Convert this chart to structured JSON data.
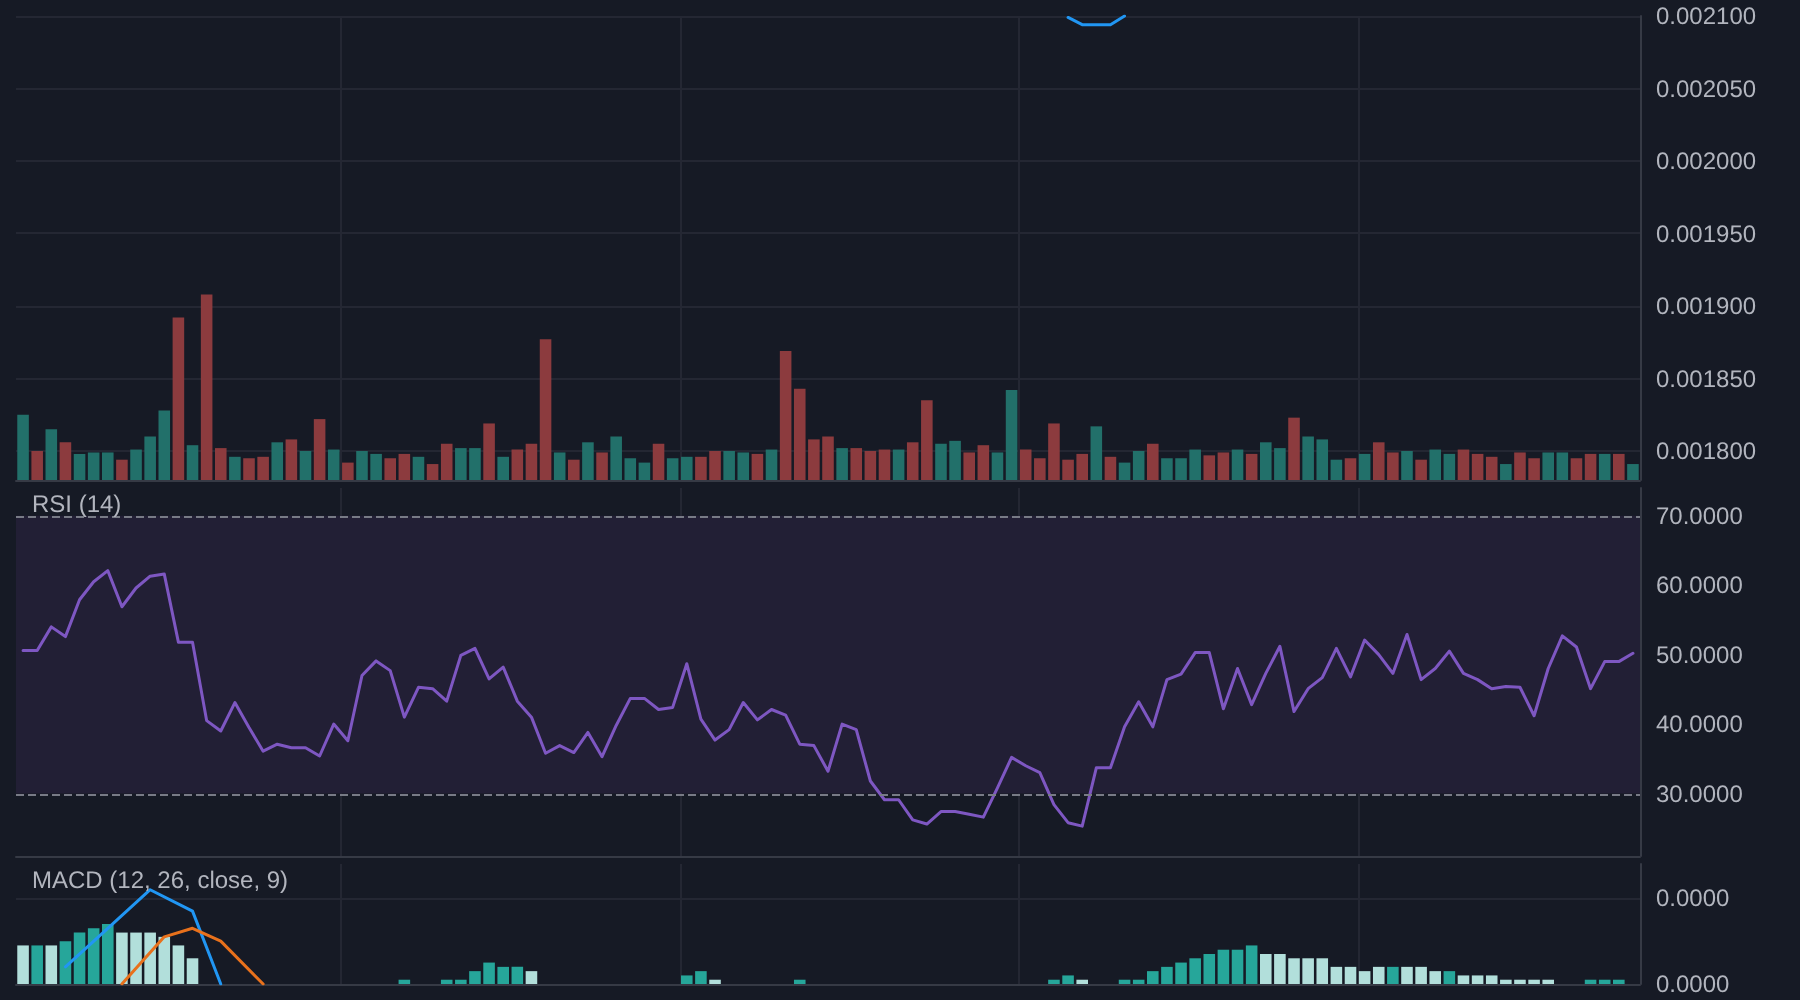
{
  "chart_data": [
    {
      "type": "bar",
      "categories": [
        null,
        null,
        null,
        null,
        null,
        null,
        null,
        null,
        null,
        null,
        null,
        null,
        null,
        null,
        null,
        null,
        null,
        null,
        null,
        null,
        null,
        null,
        null,
        null,
        null,
        null,
        null,
        null,
        null,
        null,
        null,
        null,
        null,
        null,
        null,
        null,
        null,
        null,
        null,
        null,
        null,
        null,
        null,
        null,
        null,
        null,
        null,
        null,
        null,
        null,
        null,
        null,
        null,
        null,
        null,
        null,
        null,
        null,
        null,
        null,
        null,
        null,
        null,
        null,
        null,
        null,
        null,
        null,
        null,
        null,
        null,
        null,
        null,
        null,
        null,
        null,
        null,
        null,
        null,
        null,
        null,
        null,
        null,
        null,
        null,
        null,
        null,
        null,
        null,
        null,
        null,
        null,
        null,
        null,
        null,
        null,
        null,
        null,
        null,
        null,
        null,
        null,
        null,
        null,
        null,
        null,
        null,
        null,
        null,
        null,
        null,
        null,
        null,
        null,
        null
      ],
      "series": [
        {
          "values": [
            0.001825,
            0.0018,
            0.001815,
            0.001806,
            0.001798,
            0.001799,
            0.001799,
            0.001794,
            0.001801,
            0.00181,
            0.001828,
            0.001892,
            0.001804,
            0.001908,
            0.001802,
            0.001796,
            0.001795,
            0.001796,
            0.001806,
            0.001808,
            0.0018,
            0.001822,
            0.001801,
            0.001792,
            0.0018,
            0.001798,
            0.001795,
            0.001798,
            0.001796,
            0.001791,
            0.001805,
            0.001802,
            0.001802,
            0.001819,
            0.001796,
            0.001801,
            0.001805,
            0.001877,
            0.001799,
            0.001794,
            0.001806,
            0.001799,
            0.00181,
            0.001795,
            0.001792,
            0.001805,
            0.001795,
            0.001796,
            0.001796,
            0.0018,
            0.0018,
            0.001799,
            0.001798,
            0.001801,
            0.001869,
            0.001843,
            0.001808,
            0.00181,
            0.001802,
            0.001802,
            0.0018,
            0.001801,
            0.001801,
            0.001806,
            0.001835,
            0.001805,
            0.001807,
            0.001799,
            0.001804,
            0.001799,
            0.001842,
            0.001801,
            0.001795,
            0.001819,
            0.001794,
            0.001798,
            0.001817,
            0.001796,
            0.001792,
            0.0018,
            0.001805,
            0.001795,
            0.001795,
            0.001801,
            0.001797,
            0.001799,
            0.001801,
            0.001798,
            0.001806,
            0.001802,
            0.001823,
            0.00181,
            0.001808,
            0.001794,
            0.001795,
            0.001798,
            0.001806,
            0.001799,
            0.0018,
            0.001794,
            0.001801,
            0.001798,
            0.001801,
            0.001798,
            0.001796,
            0.001791,
            0.001799,
            0.001795,
            0.001799,
            0.001799,
            0.001795,
            0.001798,
            0.001798,
            0.001798,
            0.001791
          ],
          "colors": [
            "#22706a",
            "#8c3b3e",
            "#22706a",
            "#8c3b3e",
            "#22706a",
            "#22706a",
            "#22706a",
            "#8c3b3e",
            "#22706a",
            "#22706a",
            "#22706a",
            "#8c3b3e",
            "#22706a",
            "#8c3b3e",
            "#8c3b3e",
            "#22706a",
            "#8c3b3e",
            "#8c3b3e",
            "#22706a",
            "#8c3b3e",
            "#22706a",
            "#8c3b3e",
            "#22706a",
            "#8c3b3e",
            "#22706a",
            "#22706a",
            "#8c3b3e",
            "#8c3b3e",
            "#22706a",
            "#8c3b3e",
            "#8c3b3e",
            "#22706a",
            "#22706a",
            "#8c3b3e",
            "#22706a",
            "#8c3b3e",
            "#8c3b3e",
            "#8c3b3e",
            "#22706a",
            "#8c3b3e",
            "#22706a",
            "#8c3b3e",
            "#22706a",
            "#22706a",
            "#22706a",
            "#8c3b3e",
            "#22706a",
            "#22706a",
            "#8c3b3e",
            "#8c3b3e",
            "#22706a",
            "#22706a",
            "#8c3b3e",
            "#22706a",
            "#8c3b3e",
            "#8c3b3e",
            "#8c3b3e",
            "#8c3b3e",
            "#22706a",
            "#8c3b3e",
            "#8c3b3e",
            "#8c3b3e",
            "#22706a",
            "#8c3b3e",
            "#8c3b3e",
            "#22706a",
            "#22706a",
            "#8c3b3e",
            "#8c3b3e",
            "#22706a",
            "#22706a",
            "#8c3b3e",
            "#8c3b3e",
            "#8c3b3e",
            "#8c3b3e",
            "#8c3b3e",
            "#22706a",
            "#8c3b3e",
            "#22706a",
            "#22706a",
            "#8c3b3e",
            "#22706a",
            "#22706a",
            "#22706a",
            "#8c3b3e",
            "#8c3b3e",
            "#22706a",
            "#8c3b3e",
            "#22706a",
            "#22706a",
            "#8c3b3e",
            "#22706a",
            "#22706a",
            "#22706a",
            "#8c3b3e",
            "#22706a",
            "#8c3b3e",
            "#8c3b3e",
            "#22706a",
            "#8c3b3e",
            "#22706a",
            "#22706a",
            "#8c3b3e",
            "#8c3b3e",
            "#8c3b3e",
            "#22706a",
            "#8c3b3e",
            "#8c3b3e",
            "#22706a",
            "#22706a",
            "#8c3b3e",
            "#8c3b3e",
            "#22706a",
            "#8c3b3e",
            "#22706a"
          ]
        },
        {
          "type": "line",
          "color": "#2196f3",
          "values": [
            null,
            null,
            null,
            null,
            null,
            null,
            null,
            null,
            null,
            null,
            null,
            null,
            null,
            null,
            null,
            null,
            null,
            null,
            null,
            null,
            null,
            null,
            null,
            null,
            null,
            null,
            null,
            null,
            null,
            null,
            null,
            null,
            null,
            null,
            null,
            null,
            null,
            null,
            null,
            null,
            null,
            null,
            null,
            null,
            null,
            null,
            null,
            null,
            null,
            null,
            null,
            null,
            null,
            null,
            null,
            null,
            null,
            null,
            null,
            null,
            null,
            null,
            null,
            null,
            null,
            null,
            null,
            null,
            null,
            null,
            null,
            null,
            null,
            null,
            0.002099,
            0.002094,
            0.002094,
            0.002094,
            0.0021,
            null,
            null,
            null,
            null,
            null,
            null,
            null,
            null,
            null,
            null,
            null,
            null,
            null,
            null,
            null,
            null,
            null,
            null,
            null,
            null,
            null,
            null,
            null,
            null,
            null,
            null,
            null,
            null,
            null,
            null,
            null,
            null,
            null,
            null,
            null,
            null
          ]
        }
      ],
      "ylim": [
        0.00178,
        0.0021
      ],
      "yticks": [
        {
          "value": 0.0018,
          "label": "0.001800"
        },
        {
          "value": 0.00185,
          "label": "0.001850"
        },
        {
          "value": 0.0019,
          "label": "0.001900"
        },
        {
          "value": 0.00195,
          "label": "0.001950"
        },
        {
          "value": 0.002,
          "label": "0.002000"
        },
        {
          "value": 0.00205,
          "label": "0.002050"
        },
        {
          "value": 0.0021,
          "label": "0.002100"
        }
      ],
      "grid": true,
      "tick_labels": "y"
    },
    {
      "type": "line",
      "title": "RSI (14)",
      "categories": [
        null,
        null,
        null,
        null,
        null,
        null,
        null,
        null,
        null,
        null,
        null,
        null,
        null,
        null,
        null,
        null,
        null,
        null,
        null,
        null,
        null,
        null,
        null,
        null,
        null,
        null,
        null,
        null,
        null,
        null,
        null,
        null,
        null,
        null,
        null,
        null,
        null,
        null,
        null,
        null,
        null,
        null,
        null,
        null,
        null,
        null,
        null,
        null,
        null,
        null,
        null,
        null,
        null,
        null,
        null,
        null,
        null,
        null,
        null,
        null,
        null,
        null,
        null,
        null,
        null,
        null,
        null,
        null,
        null,
        null,
        null,
        null,
        null,
        null,
        null,
        null,
        null,
        null,
        null,
        null,
        null,
        null,
        null,
        null,
        null,
        null,
        null,
        null,
        null,
        null,
        null,
        null,
        null,
        null,
        null,
        null,
        null,
        null,
        null,
        null,
        null,
        null,
        null,
        null,
        null,
        null,
        null,
        null,
        null,
        null,
        null,
        null,
        null,
        null,
        null
      ],
      "series": [
        {
          "color": "#7e57c2",
          "values": [
            50.6,
            50.6,
            54.0,
            52.6,
            57.9,
            60.5,
            62.1,
            56.9,
            59.6,
            61.3,
            61.6,
            51.8,
            51.8,
            40.5,
            39.0,
            43.1,
            39.5,
            36.1,
            37.1,
            36.6,
            36.6,
            35.4,
            40.0,
            37.6,
            47.0,
            49.1,
            47.7,
            41.0,
            45.3,
            45.1,
            43.3,
            49.9,
            50.9,
            46.5,
            48.2,
            43.3,
            41.0,
            35.8,
            36.9,
            35.9,
            38.8,
            35.3,
            39.8,
            43.7,
            43.7,
            42.1,
            42.4,
            48.7,
            40.7,
            37.7,
            39.2,
            43.1,
            40.6,
            42.1,
            41.3,
            37.1,
            36.9,
            33.2,
            40.0,
            39.2,
            31.8,
            29.1,
            29.1,
            26.2,
            25.6,
            27.4,
            27.4,
            27.0,
            26.6,
            30.8,
            35.2,
            34.0,
            33.0,
            28.4,
            25.8,
            25.3,
            33.7,
            33.7,
            39.6,
            43.2,
            39.6,
            46.4,
            47.2,
            50.3,
            50.3,
            42.2,
            48.0,
            42.8,
            47.3,
            51.2,
            41.8,
            45.1,
            46.7,
            50.9,
            46.8,
            52.1,
            50.0,
            47.3,
            52.9,
            46.4,
            48.0,
            50.5,
            47.3,
            46.4,
            45.1,
            45.4,
            45.3,
            41.2,
            48.0,
            52.7,
            51.1,
            45.1,
            49.0,
            49.0,
            50.2
          ]
        }
      ],
      "ylim": [
        21,
        74
      ],
      "yticks": [
        {
          "value": 30,
          "label": "30.0000"
        },
        {
          "value": 40,
          "label": "40.0000"
        },
        {
          "value": 50,
          "label": "50.0000"
        },
        {
          "value": 60,
          "label": "60.0000"
        },
        {
          "value": 70,
          "label": "70.0000"
        }
      ],
      "bands": [
        {
          "axis": "y",
          "from": 30,
          "to": 70,
          "color": "#221f35"
        }
      ],
      "ref_lines": [
        {
          "axis": "y",
          "value": 70,
          "color": "#787b86",
          "line_style": "dashed"
        },
        {
          "axis": "y",
          "value": 30,
          "color": "#787b86",
          "line_style": "dashed"
        }
      ],
      "grid": true,
      "tick_labels": "y",
      "line_style": "solid"
    },
    {
      "type": "bar",
      "title": "MACD (12, 26, close, 9)",
      "categories": [
        null,
        null,
        null,
        null,
        null,
        null,
        null,
        null,
        null,
        null,
        null,
        null,
        null,
        null,
        null,
        null,
        null,
        null,
        null,
        null,
        null,
        null,
        null,
        null,
        null,
        null,
        null,
        null,
        null,
        null,
        null,
        null,
        null,
        null,
        null,
        null,
        null,
        null,
        null,
        null,
        null,
        null,
        null,
        null,
        null,
        null,
        null,
        null,
        null,
        null,
        null,
        null,
        null,
        null,
        null,
        null,
        null,
        null,
        null,
        null,
        null,
        null,
        null,
        null,
        null,
        null,
        null,
        null,
        null,
        null,
        null,
        null,
        null,
        null,
        null,
        null,
        null,
        null,
        null,
        null,
        null,
        null,
        null,
        null,
        null,
        null,
        null,
        null,
        null,
        null,
        null,
        null,
        null,
        null,
        null,
        null,
        null,
        null,
        null,
        null,
        null,
        null,
        null,
        null,
        null,
        null,
        null,
        null,
        null,
        null,
        null,
        null,
        null,
        null,
        null
      ],
      "series": [
        {
          "values": [
            9e-06,
            9e-06,
            9e-06,
            1e-05,
            1.2e-05,
            1.3e-05,
            1.4e-05,
            1.2e-05,
            1.2e-05,
            1.2e-05,
            1.1e-05,
            9e-06,
            6e-06,
            null,
            null,
            null,
            null,
            null,
            null,
            null,
            null,
            null,
            null,
            null,
            null,
            null,
            null,
            1e-06,
            null,
            null,
            1e-06,
            1e-06,
            3e-06,
            5e-06,
            4e-06,
            4e-06,
            3e-06,
            null,
            null,
            null,
            null,
            null,
            null,
            null,
            null,
            null,
            null,
            2e-06,
            3e-06,
            1e-06,
            null,
            null,
            null,
            null,
            null,
            1e-06,
            null,
            null,
            null,
            null,
            null,
            null,
            null,
            null,
            null,
            null,
            null,
            null,
            null,
            null,
            null,
            null,
            null,
            1e-06,
            2e-06,
            1e-06,
            null,
            null,
            1e-06,
            1e-06,
            3e-06,
            4e-06,
            5e-06,
            6e-06,
            7e-06,
            8e-06,
            8e-06,
            9e-06,
            7e-06,
            7e-06,
            6e-06,
            6e-06,
            6e-06,
            4e-06,
            4e-06,
            3e-06,
            4e-06,
            4e-06,
            4e-06,
            4e-06,
            3e-06,
            3e-06,
            2e-06,
            2e-06,
            2e-06,
            1e-06,
            1e-06,
            1e-06,
            1e-06,
            null,
            null,
            1e-06,
            1e-06,
            1e-06,
            null
          ],
          "colors": [
            "#b2dfdb",
            "#26a69a",
            "#b2dfdb",
            "#26a69a",
            "#26a69a",
            "#26a69a",
            "#26a69a",
            "#b2dfdb",
            "#b2dfdb",
            "#b2dfdb",
            "#b2dfdb",
            "#b2dfdb",
            "#b2dfdb",
            null,
            null,
            null,
            null,
            null,
            null,
            null,
            null,
            null,
            null,
            null,
            null,
            null,
            null,
            "#26a69a",
            null,
            null,
            "#26a69a",
            "#26a69a",
            "#26a69a",
            "#26a69a",
            "#26a69a",
            "#26a69a",
            "#b2dfdb",
            null,
            null,
            null,
            null,
            null,
            null,
            null,
            null,
            null,
            null,
            "#26a69a",
            "#26a69a",
            "#b2dfdb",
            null,
            null,
            null,
            null,
            null,
            "#26a69a",
            null,
            null,
            null,
            null,
            null,
            null,
            null,
            null,
            null,
            null,
            null,
            null,
            null,
            null,
            null,
            null,
            null,
            "#26a69a",
            "#26a69a",
            "#b2dfdb",
            null,
            null,
            "#26a69a",
            "#26a69a",
            "#26a69a",
            "#26a69a",
            "#26a69a",
            "#26a69a",
            "#26a69a",
            "#26a69a",
            "#26a69a",
            "#26a69a",
            "#b2dfdb",
            "#b2dfdb",
            "#b2dfdb",
            "#b2dfdb",
            "#b2dfdb",
            "#b2dfdb",
            "#b2dfdb",
            "#b2dfdb",
            "#b2dfdb",
            "#26a69a",
            "#b2dfdb",
            "#b2dfdb",
            "#b2dfdb",
            "#26a69a",
            "#b2dfdb",
            "#b2dfdb",
            "#b2dfdb",
            "#b2dfdb",
            "#b2dfdb",
            "#b2dfdb",
            "#b2dfdb",
            null,
            null,
            "#26a69a",
            "#26a69a",
            "#26a69a",
            null
          ]
        },
        {
          "type": "line",
          "color": "#2196f3",
          "values": [
            null,
            null,
            null,
            4e-06,
            null,
            null,
            1.3e-05,
            null,
            null,
            2.2e-05,
            null,
            null,
            1.7e-05,
            null,
            0,
            null,
            null,
            null,
            null,
            null,
            null,
            null,
            null,
            null,
            null,
            null,
            null,
            null,
            null,
            null,
            null,
            null,
            null,
            null,
            null,
            null,
            null,
            null,
            null,
            null,
            null,
            null,
            null,
            null,
            null,
            null,
            null,
            null,
            null,
            null,
            null,
            null,
            null,
            null,
            null,
            null,
            null,
            null,
            null,
            null,
            null,
            null,
            null,
            null,
            null,
            null,
            null,
            null,
            null,
            null,
            null,
            null,
            null,
            null,
            null,
            null,
            null,
            null,
            null,
            null,
            null,
            null,
            null,
            null,
            null,
            null,
            null,
            null,
            null,
            null,
            null,
            null,
            null,
            null,
            null,
            null,
            null,
            null,
            null,
            null,
            null,
            null,
            null,
            null,
            null,
            null,
            null,
            null,
            null,
            null,
            null,
            null,
            null,
            null,
            null
          ]
        },
        {
          "type": "line",
          "color": "#e8711c",
          "values": [
            null,
            null,
            null,
            null,
            null,
            null,
            null,
            0,
            null,
            null,
            1.1e-05,
            null,
            1.3e-05,
            null,
            1e-05,
            null,
            null,
            0,
            null,
            null,
            null,
            null,
            null,
            null,
            null,
            null,
            null,
            null,
            null,
            null,
            null,
            null,
            null,
            null,
            null,
            null,
            null,
            null,
            null,
            null,
            null,
            null,
            null,
            null,
            null,
            null,
            null,
            null,
            null,
            null,
            null,
            null,
            null,
            null,
            null,
            null,
            null,
            null,
            null,
            null,
            null,
            null,
            null,
            null,
            null,
            null,
            null,
            null,
            null,
            null,
            null,
            null,
            null,
            null,
            null,
            null,
            null,
            null,
            null,
            null,
            null,
            null,
            null,
            null,
            null,
            null,
            null,
            null,
            null,
            null,
            null,
            null,
            null,
            null,
            null,
            null,
            null,
            null,
            null,
            null,
            null,
            null,
            null,
            null,
            null,
            null,
            null,
            null,
            null,
            null,
            null,
            null,
            null,
            null,
            null
          ]
        }
      ],
      "ylim": [
        0,
        2.8e-05
      ],
      "yticks": [
        {
          "value": 0,
          "label": "0.0000"
        },
        {
          "value": 2e-05,
          "label": "0.0000"
        }
      ],
      "grid": true,
      "tick_labels": "y"
    }
  ]
}
